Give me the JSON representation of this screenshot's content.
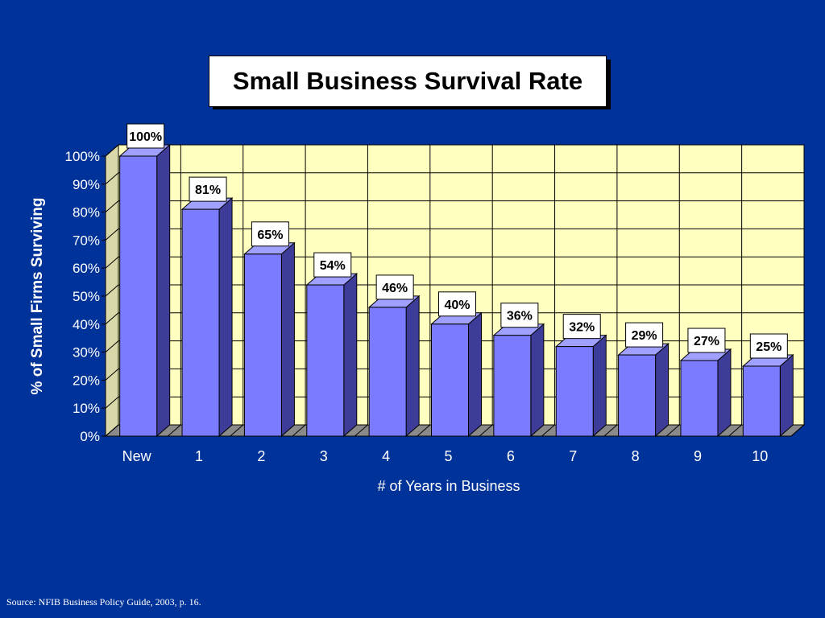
{
  "slide": {
    "title": "Small Business Survival Rate",
    "source": "Source: NFIB Business Policy Guide, 2003, p. 16."
  },
  "colors": {
    "background": "#003399",
    "plot_area": "#ffffc0",
    "bar_front": "#7b7bff",
    "bar_side": "#3d3d99",
    "bar_top": "#a0a0ff",
    "floor": "#8a8a8a"
  },
  "chart_data": {
    "type": "bar",
    "title": "Small Business Survival Rate",
    "xlabel": "# of Years in Business",
    "ylabel": "% of Small Firms Surviving",
    "categories": [
      "New",
      "1",
      "2",
      "3",
      "4",
      "5",
      "6",
      "7",
      "8",
      "9",
      "10"
    ],
    "values": [
      100,
      81,
      65,
      54,
      46,
      40,
      36,
      32,
      29,
      27,
      25
    ],
    "data_labels": [
      "100%",
      "81%",
      "65%",
      "54%",
      "46%",
      "40%",
      "36%",
      "32%",
      "29%",
      "27%",
      "25%"
    ],
    "yticks": [
      "0%",
      "10%",
      "20%",
      "30%",
      "40%",
      "50%",
      "60%",
      "70%",
      "80%",
      "90%",
      "100%"
    ],
    "ylim": [
      0,
      100
    ],
    "grid": true,
    "three_d": true,
    "legend": "none"
  }
}
